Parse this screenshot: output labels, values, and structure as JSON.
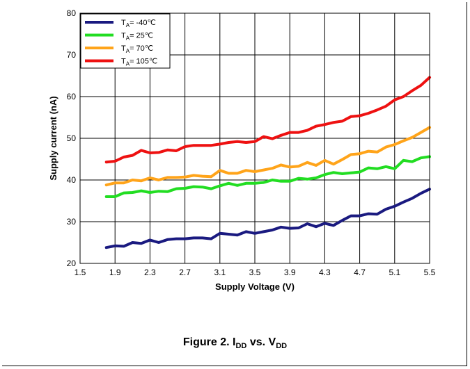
{
  "caption": {
    "prefix": "Figure 2. I",
    "sub1": "DD",
    "middle": " vs. V",
    "sub2": "DD"
  },
  "chart_data": {
    "type": "line",
    "xlabel": "Supply Voltage (V)",
    "ylabel": "Supply current (nA)",
    "xlim": [
      1.5,
      5.5
    ],
    "ylim": [
      20,
      80
    ],
    "xticks": [
      "1.5",
      "1.9",
      "2.3",
      "2.7",
      "3.1",
      "3.5",
      "3.9",
      "4.3",
      "4.7",
      "5.1",
      "5.5"
    ],
    "yticks": [
      "20",
      "30",
      "40",
      "50",
      "60",
      "70",
      "80"
    ],
    "grid": true,
    "legend_position": "top-left",
    "x": [
      1.8,
      1.9,
      2.0,
      2.1,
      2.2,
      2.3,
      2.4,
      2.5,
      2.6,
      2.7,
      2.8,
      2.9,
      3.0,
      3.1,
      3.2,
      3.3,
      3.4,
      3.5,
      3.6,
      3.7,
      3.8,
      3.9,
      4.0,
      4.1,
      4.2,
      4.3,
      4.4,
      4.5,
      4.6,
      4.7,
      4.8,
      4.9,
      5.0,
      5.1,
      5.2,
      5.3,
      5.4,
      5.5
    ],
    "series": [
      {
        "name_main": "T",
        "name_sub": "A",
        "name_rest": "= -40℃",
        "color": "#1a1a80",
        "values": [
          23.8,
          24.2,
          24.1,
          25.0,
          24.8,
          25.6,
          25.0,
          25.7,
          25.9,
          25.9,
          26.1,
          26.1,
          25.9,
          27.2,
          27.0,
          26.8,
          27.6,
          27.2,
          27.6,
          28.0,
          28.7,
          28.4,
          28.5,
          29.5,
          28.8,
          29.6,
          29.1,
          30.3,
          31.4,
          31.4,
          31.9,
          31.8,
          33.0,
          33.7,
          34.7,
          35.6,
          36.8,
          37.8
        ]
      },
      {
        "name_main": "T",
        "name_sub": "A",
        "name_rest": "= 25℃",
        "color": "#22dd22",
        "values": [
          36.0,
          36.0,
          36.9,
          37.0,
          37.4,
          37.0,
          37.3,
          37.2,
          37.9,
          38.0,
          38.4,
          38.3,
          37.9,
          38.6,
          39.2,
          38.7,
          39.2,
          39.2,
          39.4,
          40.0,
          39.7,
          39.7,
          40.4,
          40.2,
          40.5,
          41.3,
          41.8,
          41.5,
          41.7,
          41.9,
          42.9,
          42.7,
          43.2,
          42.7,
          44.7,
          44.4,
          45.3,
          45.6
        ]
      },
      {
        "name_main": "T",
        "name_sub": "A",
        "name_rest": "= 70℃",
        "color": "#ffa41a",
        "values": [
          38.8,
          39.3,
          39.3,
          40.0,
          39.8,
          40.5,
          40.0,
          40.6,
          40.6,
          40.7,
          41.1,
          40.9,
          40.8,
          42.3,
          41.6,
          41.6,
          42.3,
          42.0,
          42.4,
          42.8,
          43.6,
          43.1,
          43.3,
          44.2,
          43.5,
          44.7,
          43.8,
          44.9,
          46.1,
          46.3,
          46.9,
          46.7,
          47.9,
          48.5,
          49.4,
          50.2,
          51.4,
          52.6
        ]
      },
      {
        "name_main": "T",
        "name_sub": "A",
        "name_rest": "= 105℃",
        "color": "#ee1111",
        "values": [
          44.3,
          44.5,
          45.5,
          45.9,
          47.1,
          46.5,
          46.6,
          47.2,
          47.0,
          48.0,
          48.3,
          48.3,
          48.3,
          48.6,
          49.0,
          49.2,
          49.0,
          49.2,
          50.4,
          49.9,
          50.7,
          51.4,
          51.4,
          51.9,
          52.9,
          53.3,
          53.8,
          54.1,
          55.2,
          55.4,
          56.0,
          56.8,
          57.7,
          59.2,
          60.0,
          61.4,
          62.7,
          64.6
        ]
      }
    ]
  }
}
